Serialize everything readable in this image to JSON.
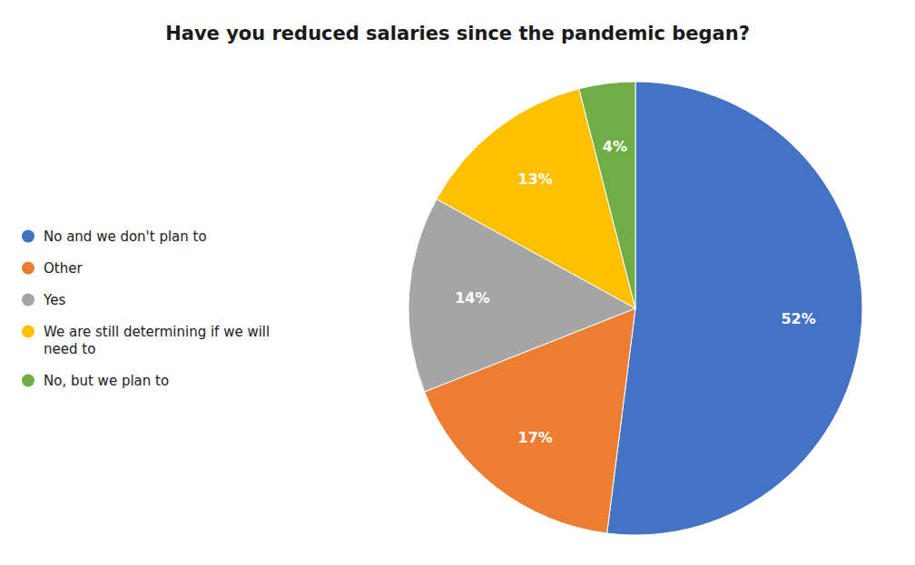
{
  "chart_data": {
    "type": "pie",
    "title": "Have you reduced salaries since the pandemic began?",
    "categories": [
      "No and we don't plan to",
      "Other",
      "Yes",
      "We are still determining if we will\nneed to",
      "No, but we plan to"
    ],
    "values": [
      52,
      17,
      14,
      13,
      4
    ],
    "value_labels": [
      "52%",
      "17%",
      "14%",
      "13%",
      "4%"
    ],
    "colors": [
      "#4472C4",
      "#ED7D31",
      "#A5A5A5",
      "#FFC000",
      "#70AD47"
    ],
    "data_labels": true,
    "legend": "left"
  }
}
